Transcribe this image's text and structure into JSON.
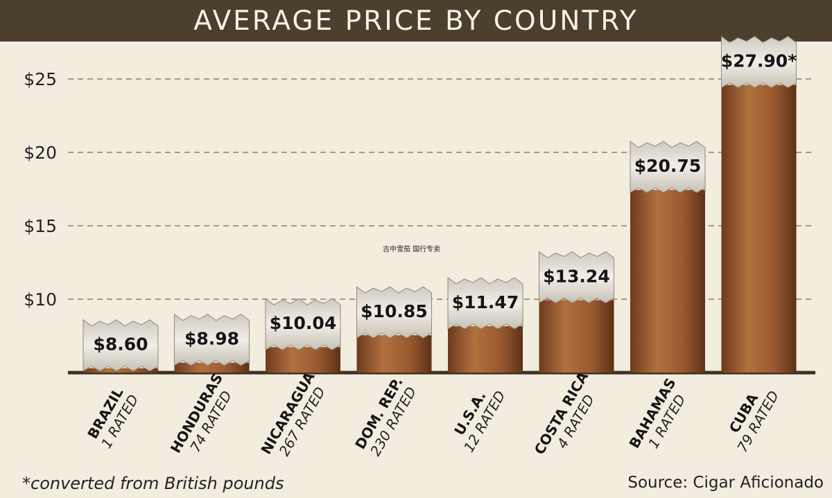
{
  "chart_data": {
    "type": "bar",
    "title": "AVERAGE PRICE BY COUNTRY",
    "categories": [
      "BRAZIL",
      "HONDURAS",
      "NICARAGUA",
      "DOM. REP.",
      "U.S.A.",
      "COSTA RICA",
      "BAHAMAS",
      "CUBA"
    ],
    "ratings": [
      "1 RATED",
      "74 RATED",
      "267 RATED",
      "230 RATED",
      "12 RATED",
      "4 RATED",
      "1 RATED",
      "79 RATED"
    ],
    "values": [
      8.6,
      8.98,
      10.04,
      10.85,
      11.47,
      13.24,
      20.75,
      27.9
    ],
    "value_labels": [
      "$8.60",
      "$8.98",
      "$10.04",
      "$10.85",
      "$11.47",
      "$13.24",
      "$20.75",
      "$27.90*"
    ],
    "yticks": [
      10,
      15,
      20,
      25
    ],
    "ytick_labels": [
      "$10",
      "$15",
      "$20",
      "$25"
    ],
    "ylim": [
      5,
      27.9
    ],
    "grid": true
  },
  "footnote": "*converted from British pounds",
  "source": "Source: Cigar Aficionado",
  "watermark": "古中雪茄 国行专卖",
  "colors": {
    "header": "#4b3f2e",
    "background": "#f3ede0",
    "cigar_body": "#9a5a32",
    "ash": "#e6e3dc",
    "baseline": "#3c3222"
  }
}
